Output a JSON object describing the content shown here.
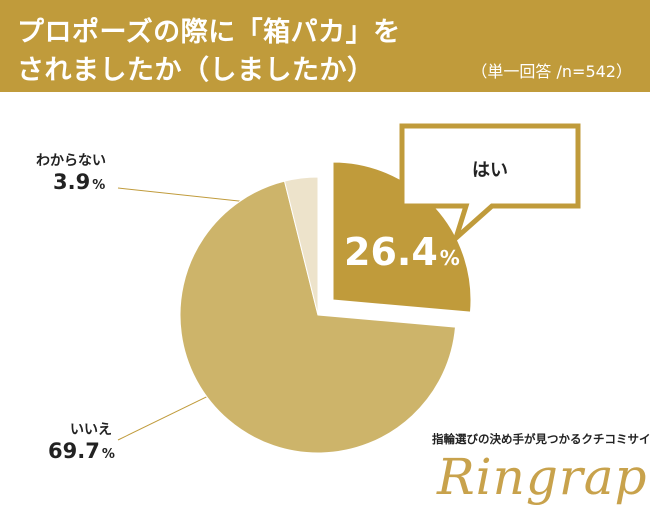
{
  "header": {
    "title_line1": "プロポーズの際に「箱パカ」を",
    "title_line2": "されましたか（しましたか）",
    "sample": "（単一回答 /n=542）"
  },
  "chart_data": {
    "type": "pie",
    "title": "プロポーズの際に「箱パカ」をされましたか（しましたか）",
    "unit": "%",
    "slices": [
      {
        "label": "はい",
        "value": 26.4,
        "value_text": "26.4",
        "color": "#C09B3B",
        "exploded": true
      },
      {
        "label": "いいえ",
        "value": 69.7,
        "value_text": "69.7",
        "color": "#CDB46A",
        "exploded": false
      },
      {
        "label": "わからない",
        "value": 3.9,
        "value_text": "3.9",
        "color": "#EDE3CB",
        "exploded": false
      }
    ]
  },
  "branding": {
    "tagline": "指輪選びの決め手が見つかるクチコミサイト",
    "logo": "Ringraph",
    "accent_color": "#C8A24C"
  }
}
